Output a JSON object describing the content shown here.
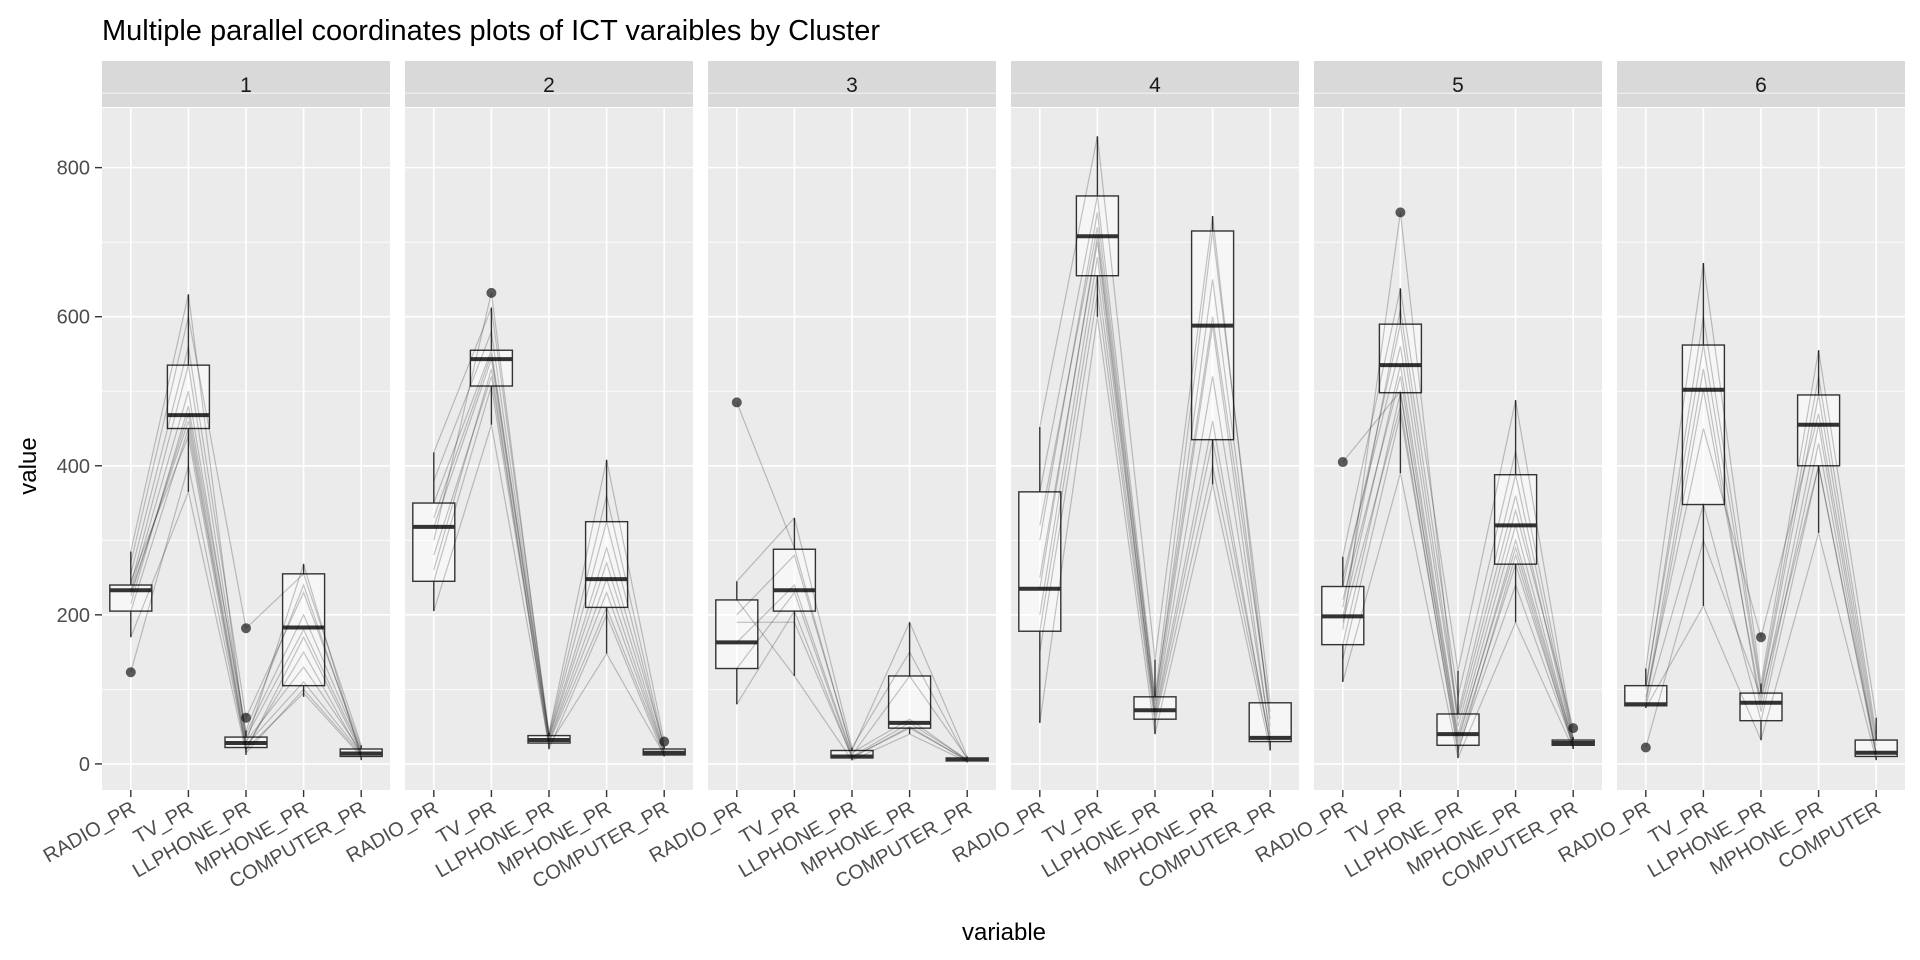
{
  "chart_data": {
    "type": "boxplot-parallel-coordinates",
    "title": "Multiple parallel coordinates plots of ICT varaibles by Cluster",
    "xlabel": "variable",
    "ylabel": "value",
    "ylim": [
      -35,
      880
    ],
    "yticks": [
      0,
      200,
      400,
      600,
      800
    ],
    "grid": true,
    "variables": [
      "RADIO_PR",
      "TV_PR",
      "LLPHONE_PR",
      "MPHONE_PR",
      "COMPUTER_PR"
    ],
    "panel_x_labels": [
      [
        "RADIO_PR",
        "TV_PR",
        "LLPHONE_PR",
        "MPHONE_PR",
        "COMPUTER_PR"
      ],
      [
        "RADIO_PR",
        "TV_PR",
        "LLPHONE_PR",
        "MPHONE_PR",
        "COMPUTER_PR"
      ],
      [
        "RADIO_PR",
        "TV_PR",
        "LLPHONE_PR",
        "MPHONE_PR",
        "COMPUTER_PR"
      ],
      [
        "RADIO_PR",
        "TV_PR",
        "LLPHONE_PR",
        "MPHONE_PR",
        "COMPUTER_PR"
      ],
      [
        "RADIO_PR",
        "TV_PR",
        "LLPHONE_PR",
        "MPHONE_PR",
        "COMPUTER_PR"
      ],
      [
        "RADIO_PR",
        "TV_PR",
        "LLPHONE_PR",
        "MPHONE_PR",
        "COMPUTER"
      ]
    ],
    "panels": [
      {
        "label": "1",
        "boxes": [
          {
            "low": 170,
            "q1": 205,
            "median": 233,
            "q3": 240,
            "high": 285,
            "outliers": [
              123
            ]
          },
          {
            "low": 365,
            "q1": 450,
            "median": 468,
            "q3": 535,
            "high": 630,
            "outliers": []
          },
          {
            "low": 12,
            "q1": 22,
            "median": 28,
            "q3": 36,
            "high": 45,
            "outliers": [
              62,
              182
            ]
          },
          {
            "low": 90,
            "q1": 105,
            "median": 183,
            "q3": 255,
            "high": 268,
            "outliers": []
          },
          {
            "low": 5,
            "q1": 10,
            "median": 14,
            "q3": 20,
            "high": 25,
            "outliers": []
          }
        ],
        "lines": [
          [
            123,
            400,
            20,
            95,
            10
          ],
          [
            170,
            365,
            15,
            100,
            12
          ],
          [
            205,
            450,
            25,
            110,
            14
          ],
          [
            225,
            470,
            30,
            130,
            16
          ],
          [
            233,
            500,
            35,
            180,
            18
          ],
          [
            240,
            535,
            40,
            200,
            20
          ],
          [
            255,
            560,
            62,
            230,
            22
          ],
          [
            270,
            600,
            182,
            255,
            25
          ],
          [
            285,
            630,
            28,
            268,
            8
          ],
          [
            230,
            460,
            22,
            150,
            12
          ],
          [
            215,
            480,
            45,
            240,
            14
          ],
          [
            245,
            440,
            18,
            170,
            15
          ]
        ]
      },
      {
        "label": "2",
        "boxes": [
          {
            "low": 205,
            "q1": 245,
            "median": 318,
            "q3": 350,
            "high": 418,
            "outliers": []
          },
          {
            "low": 455,
            "q1": 507,
            "median": 543,
            "q3": 555,
            "high": 612,
            "outliers": [
              632
            ]
          },
          {
            "low": 20,
            "q1": 28,
            "median": 32,
            "q3": 38,
            "high": 42,
            "outliers": []
          },
          {
            "low": 148,
            "q1": 210,
            "median": 248,
            "q3": 325,
            "high": 408,
            "outliers": []
          },
          {
            "low": 10,
            "q1": 12,
            "median": 15,
            "q3": 20,
            "high": 24,
            "outliers": [
              30
            ]
          }
        ],
        "lines": [
          [
            205,
            455,
            25,
            148,
            12
          ],
          [
            245,
            507,
            28,
            210,
            14
          ],
          [
            280,
            520,
            30,
            230,
            15
          ],
          [
            318,
            543,
            32,
            248,
            16
          ],
          [
            330,
            550,
            35,
            270,
            18
          ],
          [
            350,
            555,
            38,
            325,
            20
          ],
          [
            380,
            580,
            40,
            360,
            22
          ],
          [
            418,
            612,
            42,
            408,
            30
          ],
          [
            300,
            632,
            36,
            290,
            24
          ],
          [
            260,
            530,
            20,
            200,
            10
          ]
        ]
      },
      {
        "label": "3",
        "boxes": [
          {
            "low": 80,
            "q1": 128,
            "median": 163,
            "q3": 220,
            "high": 245,
            "outliers": [
              485
            ]
          },
          {
            "low": 118,
            "q1": 205,
            "median": 233,
            "q3": 288,
            "high": 330,
            "outliers": []
          },
          {
            "low": 5,
            "q1": 8,
            "median": 10,
            "q3": 18,
            "high": 22,
            "outliers": []
          },
          {
            "low": 40,
            "q1": 48,
            "median": 55,
            "q3": 118,
            "high": 190,
            "outliers": []
          },
          {
            "low": 2,
            "q1": 4,
            "median": 6,
            "q3": 8,
            "high": 10,
            "outliers": []
          }
        ],
        "lines": [
          [
            485,
            290,
            15,
            60,
            5
          ],
          [
            80,
            205,
            8,
            50,
            4
          ],
          [
            128,
            230,
            10,
            55,
            6
          ],
          [
            163,
            240,
            12,
            118,
            8
          ],
          [
            200,
            280,
            18,
            190,
            10
          ],
          [
            245,
            330,
            22,
            150,
            6
          ],
          [
            220,
            118,
            5,
            40,
            3
          ],
          [
            190,
            190,
            9,
            48,
            5
          ]
        ]
      },
      {
        "label": "4",
        "boxes": [
          {
            "low": 55,
            "q1": 178,
            "median": 235,
            "q3": 365,
            "high": 452,
            "outliers": []
          },
          {
            "low": 600,
            "q1": 655,
            "median": 708,
            "q3": 762,
            "high": 842,
            "outliers": []
          },
          {
            "low": 40,
            "q1": 60,
            "median": 72,
            "q3": 90,
            "high": 140,
            "outliers": []
          },
          {
            "low": 375,
            "q1": 435,
            "median": 588,
            "q3": 715,
            "high": 735,
            "outliers": []
          },
          {
            "low": 18,
            "q1": 30,
            "median": 35,
            "q3": 82,
            "high": 82,
            "outliers": []
          }
        ],
        "lines": [
          [
            55,
            600,
            40,
            375,
            18
          ],
          [
            178,
            655,
            60,
            435,
            30
          ],
          [
            235,
            708,
            72,
            588,
            35
          ],
          [
            300,
            740,
            80,
            650,
            60
          ],
          [
            365,
            762,
            90,
            715,
            82
          ],
          [
            452,
            842,
            140,
            735,
            50
          ],
          [
            250,
            700,
            65,
            460,
            25
          ],
          [
            200,
            680,
            70,
            520,
            40
          ],
          [
            320,
            720,
            85,
            600,
            70
          ],
          [
            150,
            630,
            55,
            400,
            28
          ]
        ]
      },
      {
        "label": "5",
        "boxes": [
          {
            "low": 110,
            "q1": 160,
            "median": 198,
            "q3": 238,
            "high": 278,
            "outliers": [
              405
            ]
          },
          {
            "low": 390,
            "q1": 498,
            "median": 535,
            "q3": 590,
            "high": 638,
            "outliers": [
              740
            ]
          },
          {
            "low": 8,
            "q1": 25,
            "median": 40,
            "q3": 67,
            "high": 125,
            "outliers": []
          },
          {
            "low": 190,
            "q1": 268,
            "median": 320,
            "q3": 388,
            "high": 488,
            "outliers": []
          },
          {
            "low": 20,
            "q1": 25,
            "median": 28,
            "q3": 32,
            "high": 36,
            "outliers": [
              48
            ]
          }
        ],
        "lines": [
          [
            405,
            500,
            30,
            300,
            28
          ],
          [
            110,
            390,
            8,
            190,
            20
          ],
          [
            160,
            498,
            25,
            268,
            25
          ],
          [
            198,
            535,
            40,
            320,
            28
          ],
          [
            238,
            590,
            67,
            388,
            32
          ],
          [
            278,
            638,
            125,
            488,
            36
          ],
          [
            180,
            740,
            50,
            340,
            48
          ],
          [
            220,
            520,
            35,
            290,
            26
          ],
          [
            250,
            560,
            60,
            360,
            30
          ],
          [
            140,
            470,
            20,
            240,
            24
          ],
          [
            210,
            610,
            90,
            420,
            34
          ],
          [
            190,
            480,
            15,
            280,
            22
          ]
        ]
      },
      {
        "label": "6",
        "boxes": [
          {
            "low": 75,
            "q1": 78,
            "median": 80,
            "q3": 105,
            "high": 128,
            "outliers": [
              22
            ]
          },
          {
            "low": 212,
            "q1": 348,
            "median": 502,
            "q3": 562,
            "high": 672,
            "outliers": []
          },
          {
            "low": 32,
            "q1": 58,
            "median": 82,
            "q3": 95,
            "high": 108,
            "outliers": [
              170
            ]
          },
          {
            "low": 310,
            "q1": 400,
            "median": 455,
            "q3": 495,
            "high": 555,
            "outliers": []
          },
          {
            "low": 5,
            "q1": 10,
            "median": 15,
            "q3": 32,
            "high": 62,
            "outliers": []
          }
        ],
        "lines": [
          [
            22,
            300,
            90,
            400,
            15
          ],
          [
            75,
            212,
            32,
            310,
            5
          ],
          [
            78,
            348,
            58,
            400,
            10
          ],
          [
            80,
            502,
            82,
            455,
            15
          ],
          [
            105,
            562,
            95,
            495,
            32
          ],
          [
            128,
            672,
            108,
            555,
            62
          ],
          [
            90,
            450,
            170,
            470,
            25
          ],
          [
            85,
            530,
            70,
            430,
            12
          ],
          [
            100,
            600,
            100,
            520,
            40
          ]
        ]
      }
    ]
  }
}
